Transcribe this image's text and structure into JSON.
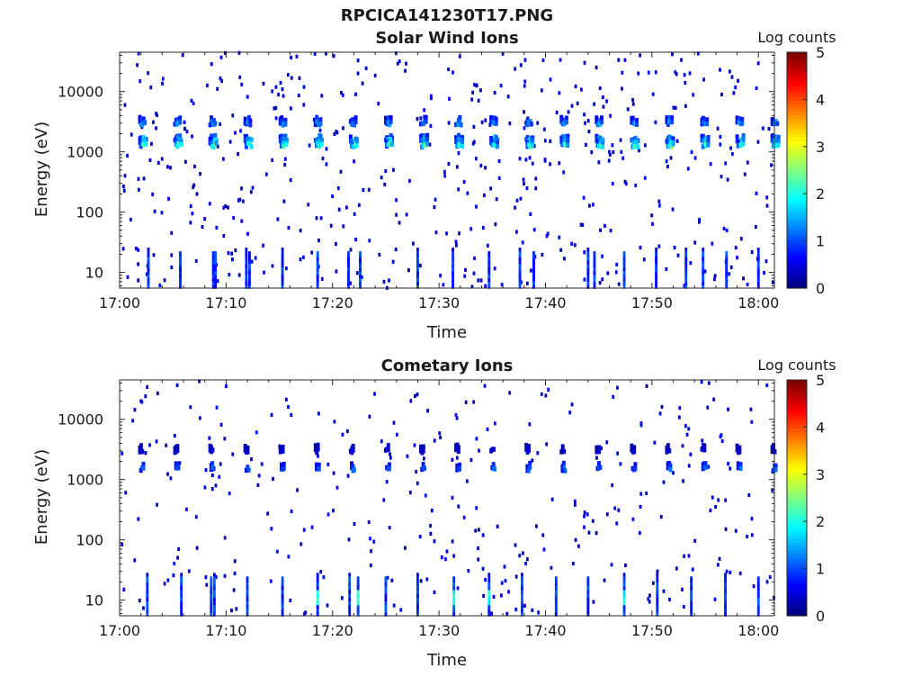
{
  "figure": {
    "title": "RPCICA141230T17.PNG"
  },
  "chart_data": [
    {
      "type": "heatmap",
      "title": "Solar Wind Ions",
      "xlabel": "Time",
      "ylabel": "Energy (eV)",
      "x_ticks": [
        "17:00",
        "17:10",
        "17:20",
        "17:30",
        "17:40",
        "17:50",
        "18:00"
      ],
      "x_range_minutes": [
        0,
        61.5
      ],
      "y_scale": "log",
      "y_ticks": [
        10,
        100,
        1000,
        10000
      ],
      "y_tick_labels": [
        "10",
        "100",
        "1000",
        "10000"
      ],
      "y_range": [
        5.5,
        45000
      ],
      "colorbar": {
        "title": "Log counts",
        "range": [
          0,
          5
        ],
        "ticks": [
          "0",
          "1",
          "2",
          "3",
          "4",
          "5"
        ],
        "colormap": "jet"
      },
      "bands": [
        {
          "energy": 3000,
          "logc_main": 1.5,
          "period_min": 3.3,
          "phase": 1.9,
          "duration": 0.55
        },
        {
          "energy": 1500,
          "logc_main": 2.0,
          "period_min": 3.3,
          "phase": 1.9,
          "duration": 0.75
        },
        {
          "energy": 1300,
          "logc_main": 2.4,
          "period_min": 3.3,
          "phase": 2.0,
          "duration": 0.6
        }
      ],
      "pulses_low_energy": [
        2.7,
        5.7,
        8.8,
        9.0,
        11.9,
        12.2,
        15.3,
        18.6,
        21.5,
        22.6,
        28.0,
        31.3,
        34.7,
        37.6,
        38.9,
        44.0,
        44.6,
        47.4,
        50.4,
        53.2,
        54.8,
        57.0,
        60.0
      ],
      "low_energy_range": [
        6,
        20
      ],
      "noise_density": 0.55,
      "seed": 17
    },
    {
      "type": "heatmap",
      "title": "Cometary Ions",
      "xlabel": "Time",
      "ylabel": "Energy (eV)",
      "x_ticks": [
        "17:00",
        "17:10",
        "17:20",
        "17:30",
        "17:40",
        "17:50",
        "18:00"
      ],
      "x_range_minutes": [
        0,
        61.5
      ],
      "y_scale": "log",
      "y_ticks": [
        10,
        100,
        1000,
        10000
      ],
      "y_tick_labels": [
        "10",
        "100",
        "1000",
        "10000"
      ],
      "y_range": [
        5.5,
        45000
      ],
      "colorbar": {
        "title": "Log counts",
        "range": [
          0,
          5
        ],
        "ticks": [
          "0",
          "1",
          "2",
          "3",
          "4",
          "5"
        ],
        "colormap": "jet"
      },
      "bands": [
        {
          "energy": 3000,
          "logc_main": 0.5,
          "period_min": 3.3,
          "phase": 1.9,
          "duration": 0.3
        },
        {
          "energy": 1500,
          "logc_main": 1.3,
          "period_min": 3.3,
          "phase": 2.0,
          "duration": 0.4
        }
      ],
      "pulses_low_energy": [
        2.6,
        5.8,
        8.6,
        8.9,
        12.0,
        15.3,
        18.6,
        21.6,
        22.4,
        25.0,
        28.0,
        31.4,
        34.7,
        37.8,
        41.0,
        44.0,
        47.4,
        50.5,
        53.7,
        56.9,
        60.0
      ],
      "pulse_strong": [
        8.7,
        18.6,
        22.4,
        31.4,
        34.7,
        47.4
      ],
      "low_energy_range": [
        6,
        22
      ],
      "noise_density": 0.35,
      "seed": 91
    }
  ]
}
